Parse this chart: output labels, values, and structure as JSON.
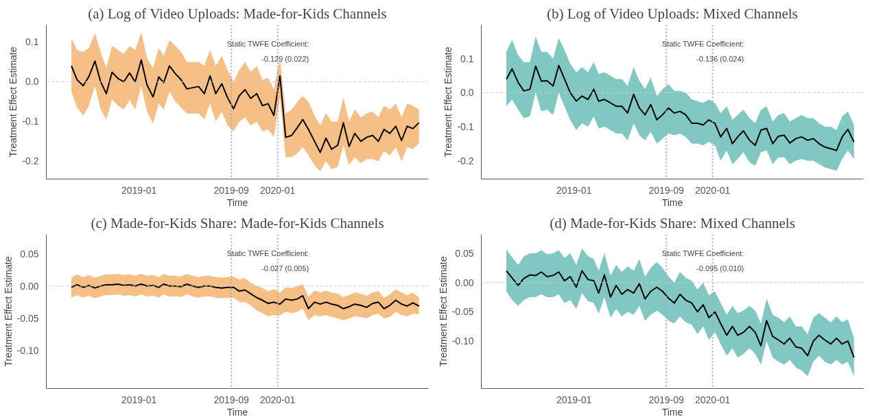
{
  "chart_data": [
    {
      "type": "line",
      "title": "(a) Log of Video Uploads: Made-for-Kids Channels",
      "xlabel": "Time",
      "ylabel": "Treatment Effect Estimate",
      "annotations": [
        "Static TWFE Coefficient:",
        "-0.129 (0.022)"
      ],
      "x": [
        "2018-07-07",
        "2018-07-22",
        "2018-08-07",
        "2018-08-22",
        "2018-09-07",
        "2018-09-22",
        "2018-10-07",
        "2018-10-22",
        "2018-11-07",
        "2018-11-22",
        "2018-12-07",
        "2018-12-22",
        "2019-01-07",
        "2019-01-22",
        "2019-02-07",
        "2019-02-22",
        "2019-03-07",
        "2019-03-22",
        "2019-04-07",
        "2019-04-22",
        "2019-05-07",
        "2019-05-22",
        "2019-06-07",
        "2019-06-22",
        "2019-07-07",
        "2019-07-22",
        "2019-08-07",
        "2019-08-22",
        "2019-09-07",
        "2019-09-22",
        "2019-10-07",
        "2019-10-22",
        "2019-11-07",
        "2019-11-22",
        "2019-12-07",
        "2019-12-22",
        "2020-01-07",
        "2020-01-22",
        "2020-02-07",
        "2020-02-22",
        "2020-03-07",
        "2020-03-22",
        "2020-04-07",
        "2020-04-22",
        "2020-05-07",
        "2020-05-22",
        "2020-06-07",
        "2020-06-22",
        "2020-07-07",
        "2020-07-22",
        "2020-08-07",
        "2020-08-22",
        "2020-09-07",
        "2020-09-22",
        "2020-10-07",
        "2020-10-22",
        "2020-11-07",
        "2020-11-22",
        "2020-12-07",
        "2020-12-22",
        "2021-01-07"
      ],
      "series": [
        {
          "color": "#000000",
          "values": [
            0.04,
            0.005,
            -0.01,
            0.013,
            0.052,
            0.0,
            -0.03,
            0.024,
            0.008,
            0.0,
            0.022,
            0.0,
            0.055,
            -0.008,
            -0.038,
            0.012,
            -0.002,
            0.04,
            0.02,
            0.005,
            -0.018,
            -0.015,
            -0.012,
            -0.03,
            0.015,
            -0.03,
            -0.005,
            -0.04,
            -0.068,
            -0.035,
            -0.02,
            -0.042,
            -0.03,
            -0.06,
            -0.055,
            -0.085,
            0.015,
            -0.14,
            -0.135,
            -0.115,
            -0.095,
            -0.12,
            -0.15,
            -0.178,
            -0.142,
            -0.17,
            -0.16,
            -0.103,
            -0.163,
            -0.13,
            -0.15,
            -0.14,
            -0.135,
            -0.15,
            -0.12,
            -0.13,
            -0.112,
            -0.148,
            -0.112,
            -0.118,
            -0.103
          ],
          "lower": [
            -0.025,
            -0.065,
            -0.085,
            -0.06,
            -0.01,
            -0.07,
            -0.095,
            -0.045,
            -0.06,
            -0.07,
            -0.045,
            -0.07,
            -0.01,
            -0.075,
            -0.105,
            -0.055,
            -0.07,
            -0.025,
            -0.05,
            -0.065,
            -0.08,
            -0.08,
            -0.08,
            -0.095,
            -0.055,
            -0.1,
            -0.075,
            -0.11,
            -0.125,
            -0.1,
            -0.09,
            -0.11,
            -0.1,
            -0.125,
            -0.12,
            -0.14,
            -0.04,
            -0.19,
            -0.19,
            -0.18,
            -0.165,
            -0.185,
            -0.21,
            -0.225,
            -0.2,
            -0.22,
            -0.215,
            -0.16,
            -0.21,
            -0.19,
            -0.205,
            -0.195,
            -0.195,
            -0.2,
            -0.175,
            -0.185,
            -0.165,
            -0.2,
            -0.165,
            -0.17,
            -0.155
          ],
          "upper": [
            0.11,
            0.08,
            0.075,
            0.085,
            0.123,
            0.075,
            0.035,
            0.09,
            0.08,
            0.07,
            0.09,
            0.08,
            0.125,
            0.06,
            0.035,
            0.085,
            0.065,
            0.105,
            0.09,
            0.075,
            0.05,
            0.05,
            0.05,
            0.04,
            0.08,
            0.04,
            0.065,
            0.03,
            0.0,
            0.03,
            0.05,
            0.025,
            0.04,
            0.005,
            0.01,
            -0.02,
            0.06,
            -0.08,
            -0.07,
            -0.05,
            -0.035,
            -0.05,
            -0.085,
            -0.11,
            -0.08,
            -0.1,
            -0.1,
            -0.04,
            -0.1,
            -0.07,
            -0.09,
            -0.08,
            -0.075,
            -0.09,
            -0.06,
            -0.07,
            -0.055,
            -0.09,
            -0.055,
            -0.06,
            -0.07
          ]
        }
      ],
      "xlim": [
        "2018-05-02",
        "2021-02-01"
      ],
      "ylim": [
        -0.245,
        0.143
      ],
      "xticks": [
        "2019-01",
        "2019-09",
        "2020-01"
      ],
      "yticks": [
        {
          "value": -0.2,
          "label": "-0.2"
        },
        {
          "value": -0.1,
          "label": "-0.1"
        },
        {
          "value": 0,
          "label": "0.0"
        },
        {
          "value": 0.1,
          "label": "0.1"
        }
      ],
      "ref_lines": [
        {
          "axis": "x",
          "value": "2019-09",
          "color": "#aaaaaa",
          "line_style": "dotted"
        },
        {
          "axis": "x",
          "value": "2020-01",
          "color": "#aaaaaa",
          "line_style": "dotted"
        },
        {
          "axis": "y",
          "value": 0,
          "color": "#cccccc",
          "line_style": "dashed"
        }
      ],
      "line_style": "solid",
      "grid": false,
      "colors": [
        "#f5bf86"
      ]
    },
    {
      "type": "line",
      "title": "(b) Log of Video Uploads: Mixed Channels",
      "xlabel": "Time",
      "ylabel": "Treatment Effect Estimate",
      "annotations": [
        "Static TWFE Coefficient:",
        "-0.136 (0.024)"
      ],
      "x": [
        "2018-07-07",
        "2018-07-22",
        "2018-08-07",
        "2018-08-22",
        "2018-09-07",
        "2018-09-22",
        "2018-10-07",
        "2018-10-22",
        "2018-11-07",
        "2018-11-22",
        "2018-12-07",
        "2018-12-22",
        "2019-01-07",
        "2019-01-22",
        "2019-02-07",
        "2019-02-22",
        "2019-03-07",
        "2019-03-22",
        "2019-04-07",
        "2019-04-22",
        "2019-05-07",
        "2019-05-22",
        "2019-06-07",
        "2019-06-22",
        "2019-07-07",
        "2019-07-22",
        "2019-08-07",
        "2019-08-22",
        "2019-09-07",
        "2019-09-22",
        "2019-10-07",
        "2019-10-22",
        "2019-11-07",
        "2019-11-22",
        "2019-12-07",
        "2019-12-22",
        "2020-01-07",
        "2020-01-22",
        "2020-02-07",
        "2020-02-22",
        "2020-03-07",
        "2020-03-22",
        "2020-04-07",
        "2020-04-22",
        "2020-05-07",
        "2020-05-22",
        "2020-06-07",
        "2020-06-22",
        "2020-07-07",
        "2020-07-22",
        "2020-08-07",
        "2020-08-22",
        "2020-09-07",
        "2020-09-22",
        "2020-10-07",
        "2020-10-22",
        "2020-11-07",
        "2020-11-22",
        "2020-12-07",
        "2020-12-22",
        "2021-01-07"
      ],
      "series": [
        {
          "color": "#000000",
          "values": [
            0.04,
            0.07,
            0.03,
            0.005,
            0.01,
            0.078,
            0.034,
            0.035,
            0.02,
            0.08,
            0.04,
            0.0,
            -0.025,
            -0.01,
            -0.02,
            0.01,
            -0.025,
            -0.02,
            -0.03,
            -0.04,
            -0.04,
            -0.06,
            -0.005,
            -0.045,
            -0.065,
            -0.035,
            -0.08,
            -0.065,
            -0.045,
            -0.06,
            -0.055,
            -0.065,
            -0.09,
            -0.09,
            -0.095,
            -0.08,
            -0.09,
            -0.13,
            -0.105,
            -0.15,
            -0.13,
            -0.112,
            -0.14,
            -0.155,
            -0.11,
            -0.105,
            -0.15,
            -0.128,
            -0.125,
            -0.148,
            -0.135,
            -0.13,
            -0.14,
            -0.135,
            -0.15,
            -0.16,
            -0.165,
            -0.17,
            -0.13,
            -0.108,
            -0.145
          ],
          "lower": [
            -0.04,
            -0.02,
            -0.05,
            -0.075,
            -0.07,
            0.0,
            -0.055,
            -0.05,
            -0.065,
            0.0,
            -0.04,
            -0.08,
            -0.11,
            -0.09,
            -0.1,
            -0.07,
            -0.105,
            -0.1,
            -0.11,
            -0.12,
            -0.12,
            -0.14,
            -0.09,
            -0.125,
            -0.14,
            -0.115,
            -0.15,
            -0.135,
            -0.12,
            -0.125,
            -0.12,
            -0.13,
            -0.15,
            -0.15,
            -0.155,
            -0.145,
            -0.155,
            -0.2,
            -0.17,
            -0.21,
            -0.195,
            -0.175,
            -0.205,
            -0.215,
            -0.175,
            -0.17,
            -0.21,
            -0.19,
            -0.19,
            -0.21,
            -0.2,
            -0.195,
            -0.2,
            -0.2,
            -0.21,
            -0.22,
            -0.225,
            -0.23,
            -0.195,
            -0.17,
            -0.195
          ],
          "upper": [
            0.12,
            0.155,
            0.11,
            0.09,
            0.09,
            0.165,
            0.12,
            0.12,
            0.1,
            0.16,
            0.125,
            0.085,
            0.06,
            0.075,
            0.06,
            0.09,
            0.055,
            0.06,
            0.05,
            0.04,
            0.04,
            0.02,
            0.075,
            0.035,
            0.01,
            0.045,
            -0.01,
            0.01,
            0.025,
            0.005,
            0.005,
            0.0,
            -0.02,
            -0.025,
            -0.03,
            -0.02,
            -0.03,
            -0.06,
            -0.04,
            -0.08,
            -0.065,
            -0.05,
            -0.075,
            -0.09,
            -0.05,
            -0.04,
            -0.085,
            -0.065,
            -0.06,
            -0.085,
            -0.075,
            -0.065,
            -0.075,
            -0.075,
            -0.09,
            -0.1,
            -0.1,
            -0.11,
            -0.07,
            -0.055,
            -0.095
          ]
        }
      ],
      "xlim": [
        "2018-05-02",
        "2021-02-01"
      ],
      "ylim": [
        -0.254,
        0.199
      ],
      "xticks": [
        "2019-01",
        "2019-09",
        "2020-01"
      ],
      "yticks": [
        {
          "value": -0.2,
          "label": "-0.2"
        },
        {
          "value": -0.1,
          "label": "-0.1"
        },
        {
          "value": 0,
          "label": "0.0"
        },
        {
          "value": 0.1,
          "label": "0.1"
        }
      ],
      "ref_lines": [
        {
          "axis": "x",
          "value": "2019-09",
          "color": "#aaaaaa",
          "line_style": "dotted"
        },
        {
          "axis": "x",
          "value": "2020-01",
          "color": "#aaaaaa",
          "line_style": "dotted"
        },
        {
          "axis": "y",
          "value": 0,
          "color": "#cccccc",
          "line_style": "dashed"
        }
      ],
      "line_style": "solid",
      "grid": false,
      "colors": [
        "#82c8c2"
      ]
    },
    {
      "type": "line",
      "title": "(c) Made-for-Kids Share: Made-for-Kids Channels",
      "xlabel": "Time",
      "ylabel": "Treatment Effect Estimate",
      "annotations": [
        "Static TWFE Coefficient:",
        "-0.027 (0.005)"
      ],
      "x": [
        "2018-07-07",
        "2018-07-22",
        "2018-08-07",
        "2018-08-22",
        "2018-09-07",
        "2018-09-22",
        "2018-10-07",
        "2018-10-22",
        "2018-11-07",
        "2018-11-22",
        "2018-12-07",
        "2018-12-22",
        "2019-01-07",
        "2019-01-22",
        "2019-02-07",
        "2019-02-22",
        "2019-03-07",
        "2019-03-22",
        "2019-04-07",
        "2019-04-22",
        "2019-05-07",
        "2019-05-22",
        "2019-06-07",
        "2019-06-22",
        "2019-07-07",
        "2019-07-22",
        "2019-08-07",
        "2019-08-22",
        "2019-09-07",
        "2019-09-22",
        "2019-10-07",
        "2019-10-22",
        "2019-11-07",
        "2019-11-22",
        "2019-12-07",
        "2019-12-22",
        "2020-01-07",
        "2020-01-22",
        "2020-02-07",
        "2020-02-22",
        "2020-03-07",
        "2020-03-22",
        "2020-04-07",
        "2020-04-22",
        "2020-05-07",
        "2020-05-22",
        "2020-06-07",
        "2020-06-22",
        "2020-07-07",
        "2020-07-22",
        "2020-08-07",
        "2020-08-22",
        "2020-09-07",
        "2020-09-22",
        "2020-10-07",
        "2020-10-22",
        "2020-11-07",
        "2020-11-22",
        "2020-12-07",
        "2020-12-22",
        "2021-01-07"
      ],
      "series": [
        {
          "color": "#000000",
          "values": [
            -0.002,
            0.002,
            -0.002,
            0.001,
            -0.003,
            0.0,
            0.002,
            0.002,
            0.003,
            0.001,
            0.002,
            0.0,
            0.003,
            0.0,
            0.001,
            -0.002,
            0.003,
            0.0,
            0.0,
            -0.001,
            0.003,
            0.0,
            -0.002,
            0.0,
            0.0,
            -0.002,
            -0.003,
            -0.002,
            -0.002,
            -0.008,
            -0.006,
            -0.012,
            -0.018,
            -0.022,
            -0.027,
            -0.025,
            -0.028,
            -0.02,
            -0.022,
            -0.02,
            -0.015,
            -0.035,
            -0.025,
            -0.028,
            -0.025,
            -0.028,
            -0.03,
            -0.035,
            -0.032,
            -0.028,
            -0.03,
            -0.033,
            -0.027,
            -0.025,
            -0.035,
            -0.03,
            -0.022,
            -0.028,
            -0.031,
            -0.026,
            -0.031
          ],
          "lower": [
            -0.018,
            -0.014,
            -0.018,
            -0.015,
            -0.019,
            -0.016,
            -0.014,
            -0.014,
            -0.013,
            -0.015,
            -0.014,
            -0.016,
            -0.013,
            -0.016,
            -0.015,
            -0.018,
            -0.013,
            -0.016,
            -0.016,
            -0.017,
            -0.013,
            -0.016,
            -0.018,
            -0.016,
            -0.016,
            -0.018,
            -0.019,
            -0.018,
            -0.018,
            -0.025,
            -0.025,
            -0.03,
            -0.038,
            -0.042,
            -0.047,
            -0.045,
            -0.046,
            -0.04,
            -0.042,
            -0.04,
            -0.035,
            -0.053,
            -0.045,
            -0.047,
            -0.045,
            -0.048,
            -0.05,
            -0.053,
            -0.05,
            -0.047,
            -0.048,
            -0.05,
            -0.045,
            -0.043,
            -0.05,
            -0.048,
            -0.04,
            -0.045,
            -0.047,
            -0.043,
            -0.044
          ],
          "upper": [
            0.013,
            0.018,
            0.014,
            0.017,
            0.013,
            0.016,
            0.018,
            0.018,
            0.019,
            0.017,
            0.018,
            0.016,
            0.019,
            0.016,
            0.017,
            0.014,
            0.019,
            0.016,
            0.016,
            0.015,
            0.019,
            0.016,
            0.014,
            0.016,
            0.016,
            0.014,
            0.013,
            0.014,
            0.015,
            0.01,
            0.012,
            0.005,
            0.0,
            -0.003,
            -0.008,
            -0.005,
            -0.01,
            -0.002,
            -0.003,
            0.0,
            0.003,
            -0.017,
            -0.007,
            -0.01,
            -0.007,
            -0.01,
            -0.012,
            -0.017,
            -0.014,
            -0.01,
            -0.012,
            -0.015,
            -0.01,
            -0.008,
            -0.018,
            -0.013,
            -0.005,
            -0.01,
            -0.014,
            -0.01,
            -0.018
          ]
        }
      ],
      "xlim": [
        "2018-05-02",
        "2021-02-01"
      ],
      "ylim": [
        -0.159,
        0.08
      ],
      "xticks": [
        "2019-01",
        "2019-09",
        "2020-01"
      ],
      "yticks": [
        {
          "value": -0.1,
          "label": "-0.10"
        },
        {
          "value": -0.05,
          "label": "-0.05"
        },
        {
          "value": 0,
          "label": "0.00"
        },
        {
          "value": 0.05,
          "label": "0.05"
        }
      ],
      "ref_lines": [
        {
          "axis": "x",
          "value": "2019-09",
          "color": "#aaaaaa",
          "line_style": "dotted"
        },
        {
          "axis": "x",
          "value": "2020-01",
          "color": "#aaaaaa",
          "line_style": "dotted"
        },
        {
          "axis": "y",
          "value": 0,
          "color": "#cccccc",
          "line_style": "dashed"
        }
      ],
      "line_style": "solid",
      "grid": false,
      "colors": [
        "#f5bf86"
      ]
    },
    {
      "type": "line",
      "title": "(d) Made-for-Kids Share: Mixed Channels",
      "xlabel": "Time",
      "ylabel": "Treatment Effect Estimate",
      "annotations": [
        "Static TWFE Coefficient:",
        "-0.095 (0.010)"
      ],
      "x": [
        "2018-07-07",
        "2018-07-22",
        "2018-08-07",
        "2018-08-22",
        "2018-09-07",
        "2018-09-22",
        "2018-10-07",
        "2018-10-22",
        "2018-11-07",
        "2018-11-22",
        "2018-12-07",
        "2018-12-22",
        "2019-01-07",
        "2019-01-22",
        "2019-02-07",
        "2019-02-22",
        "2019-03-07",
        "2019-03-22",
        "2019-04-07",
        "2019-04-22",
        "2019-05-07",
        "2019-05-22",
        "2019-06-07",
        "2019-06-22",
        "2019-07-07",
        "2019-07-22",
        "2019-08-07",
        "2019-08-22",
        "2019-09-07",
        "2019-09-22",
        "2019-10-07",
        "2019-10-22",
        "2019-11-07",
        "2019-11-22",
        "2019-12-07",
        "2019-12-22",
        "2020-01-07",
        "2020-01-22",
        "2020-02-07",
        "2020-02-22",
        "2020-03-07",
        "2020-03-22",
        "2020-04-07",
        "2020-04-22",
        "2020-05-07",
        "2020-05-22",
        "2020-06-07",
        "2020-06-22",
        "2020-07-07",
        "2020-07-22",
        "2020-08-07",
        "2020-08-22",
        "2020-09-07",
        "2020-09-22",
        "2020-10-07",
        "2020-10-22",
        "2020-11-07",
        "2020-11-22",
        "2020-12-07",
        "2020-12-22",
        "2021-01-07"
      ],
      "series": [
        {
          "color": "#000000",
          "values": [
            0.02,
            0.008,
            -0.005,
            0.007,
            0.013,
            0.012,
            0.018,
            0.01,
            0.012,
            0.018,
            0.003,
            0.01,
            -0.008,
            0.02,
            0.005,
            0.003,
            -0.018,
            0.013,
            -0.025,
            -0.005,
            -0.02,
            -0.012,
            -0.018,
            -0.002,
            -0.028,
            -0.015,
            -0.008,
            -0.015,
            -0.027,
            -0.035,
            -0.02,
            -0.03,
            -0.035,
            -0.05,
            -0.038,
            -0.06,
            -0.05,
            -0.07,
            -0.09,
            -0.075,
            -0.09,
            -0.085,
            -0.075,
            -0.085,
            -0.108,
            -0.065,
            -0.092,
            -0.098,
            -0.105,
            -0.095,
            -0.11,
            -0.112,
            -0.125,
            -0.1,
            -0.09,
            -0.098,
            -0.105,
            -0.095,
            -0.105,
            -0.1,
            -0.128
          ],
          "lower": [
            -0.015,
            -0.03,
            -0.04,
            -0.03,
            -0.025,
            -0.025,
            -0.02,
            -0.025,
            -0.025,
            -0.02,
            -0.035,
            -0.03,
            -0.045,
            -0.018,
            -0.032,
            -0.035,
            -0.053,
            -0.025,
            -0.06,
            -0.045,
            -0.058,
            -0.05,
            -0.055,
            -0.04,
            -0.065,
            -0.055,
            -0.048,
            -0.055,
            -0.065,
            -0.07,
            -0.058,
            -0.068,
            -0.072,
            -0.088,
            -0.075,
            -0.098,
            -0.085,
            -0.105,
            -0.125,
            -0.112,
            -0.128,
            -0.122,
            -0.112,
            -0.122,
            -0.14,
            -0.1,
            -0.128,
            -0.135,
            -0.14,
            -0.132,
            -0.145,
            -0.15,
            -0.16,
            -0.135,
            -0.125,
            -0.135,
            -0.14,
            -0.132,
            -0.14,
            -0.135,
            -0.16
          ],
          "upper": [
            0.056,
            0.043,
            0.03,
            0.045,
            0.05,
            0.05,
            0.055,
            0.048,
            0.05,
            0.055,
            0.042,
            0.05,
            0.03,
            0.058,
            0.045,
            0.04,
            0.02,
            0.05,
            0.012,
            0.03,
            0.018,
            0.028,
            0.02,
            0.04,
            0.01,
            0.025,
            0.035,
            0.025,
            0.01,
            0.0,
            0.018,
            0.008,
            0.003,
            -0.012,
            0.0,
            -0.022,
            -0.015,
            -0.035,
            -0.055,
            -0.04,
            -0.052,
            -0.048,
            -0.04,
            -0.048,
            -0.07,
            -0.028,
            -0.055,
            -0.06,
            -0.068,
            -0.058,
            -0.075,
            -0.075,
            -0.088,
            -0.06,
            -0.052,
            -0.06,
            -0.068,
            -0.058,
            -0.068,
            -0.063,
            -0.095
          ]
        }
      ],
      "xlim": [
        "2018-05-02",
        "2021-02-01"
      ],
      "ylim": [
        -0.181,
        0.082
      ],
      "xticks": [
        "2019-01",
        "2019-09",
        "2020-01"
      ],
      "yticks": [
        {
          "value": -0.1,
          "label": "-0.10"
        },
        {
          "value": -0.05,
          "label": "-0.05"
        },
        {
          "value": 0,
          "label": "0.00"
        },
        {
          "value": 0.05,
          "label": "0.05"
        }
      ],
      "ref_lines": [
        {
          "axis": "x",
          "value": "2019-09",
          "color": "#aaaaaa",
          "line_style": "dotted"
        },
        {
          "axis": "x",
          "value": "2020-01",
          "color": "#aaaaaa",
          "line_style": "dotted"
        },
        {
          "axis": "y",
          "value": 0,
          "color": "#cccccc",
          "line_style": "dashed"
        }
      ],
      "line_style": "solid",
      "grid": false,
      "colors": [
        "#82c8c2"
      ]
    }
  ]
}
